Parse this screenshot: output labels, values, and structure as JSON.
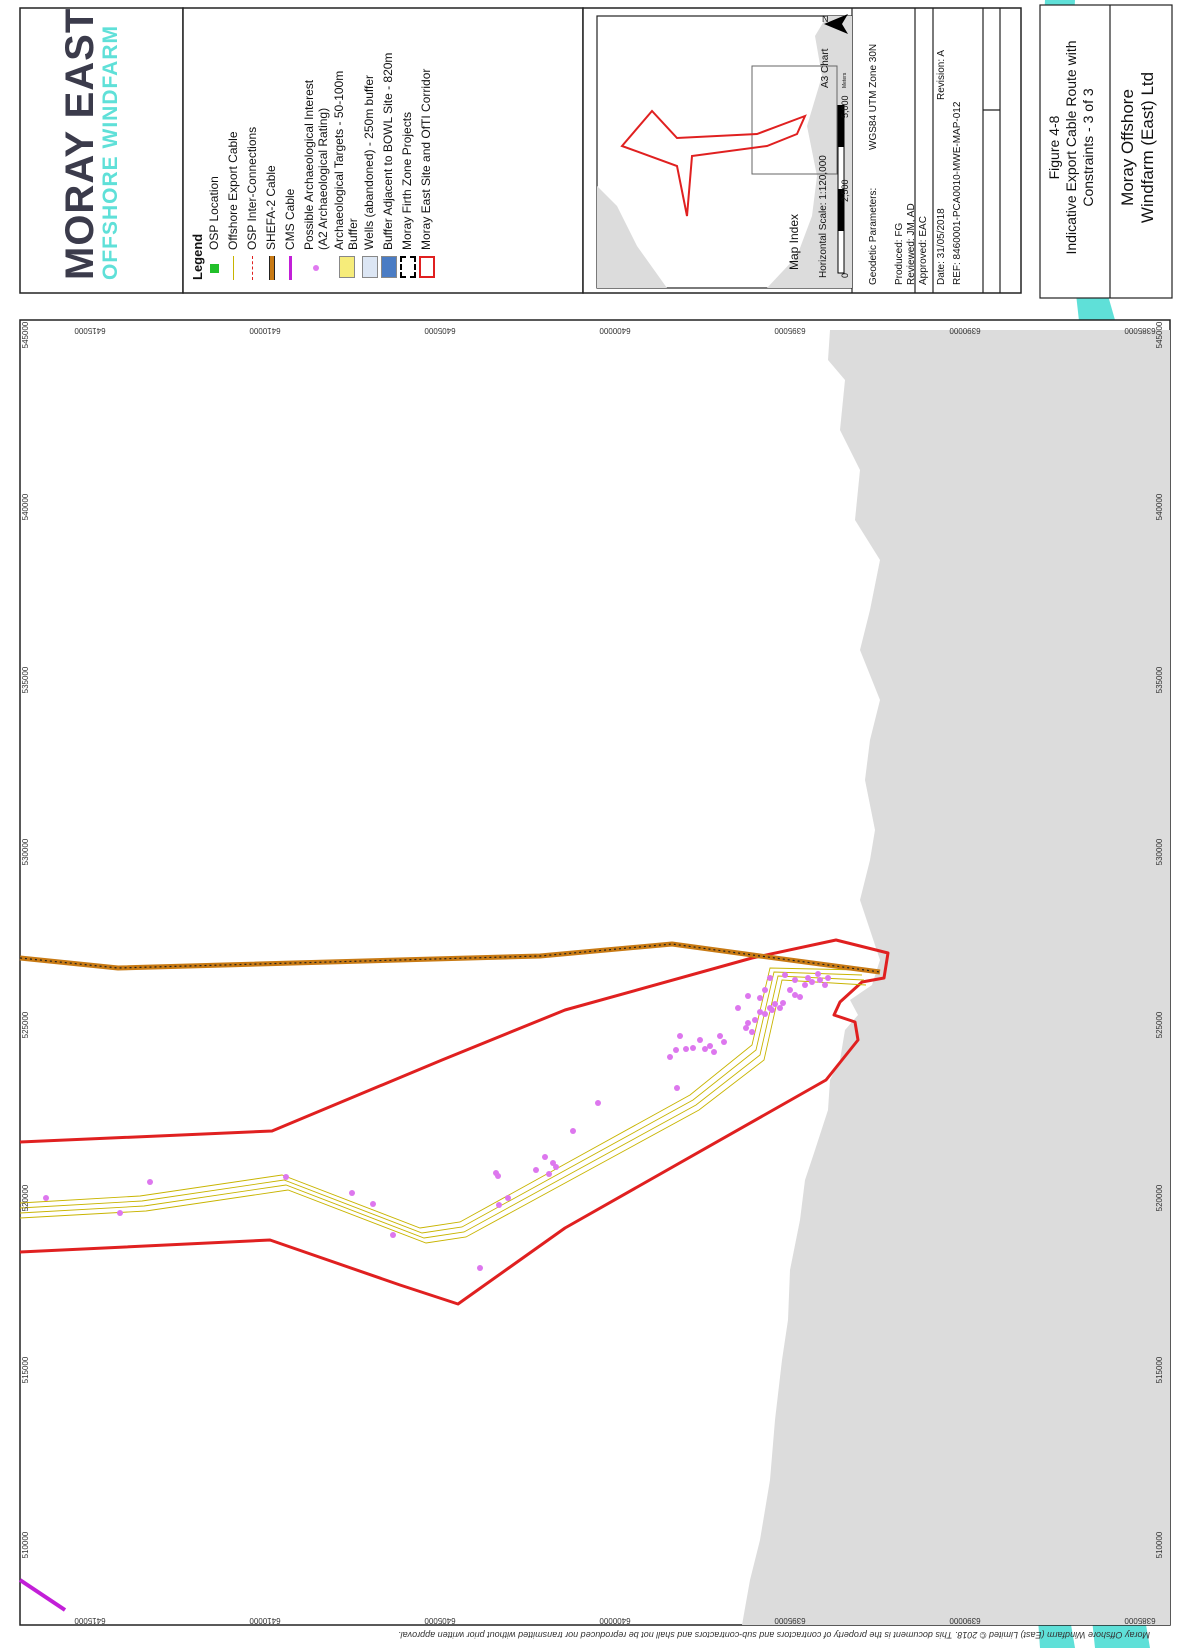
{
  "logo": {
    "line1": "MORAY EAST",
    "line2": "OFFSHORE WINDFARM"
  },
  "legend": {
    "title": "Legend",
    "items": [
      {
        "label": "OSP Location",
        "symbol": "green-square",
        "color": "#22c02a"
      },
      {
        "label": "Offshore Export Cable",
        "symbol": "line",
        "color": "#c8b400"
      },
      {
        "label": "OSP Inter-Connections",
        "symbol": "dashed-line",
        "color": "#e02020"
      },
      {
        "label": "SHEFA-2 Cable",
        "symbol": "cable",
        "color": "#c87a14"
      },
      {
        "label": "CMS Cable",
        "symbol": "line-thick",
        "color": "#c21fd8"
      },
      {
        "label": "Possible Archaeological Interest",
        "label2": "(A2 Archaeological Rating)",
        "symbol": "dot",
        "color": "#e07af0"
      },
      {
        "label": "Archaeological Targets - 50-100m",
        "label2": "Buffer",
        "symbol": "yellow-box",
        "color": "#f6ec7a"
      },
      {
        "label": "Wells (abandoned) - 250m buffer",
        "symbol": "lightblue-box",
        "color": "#dce6f4"
      },
      {
        "label": "Buffer Adjacent to BOWL Site - 820m",
        "symbol": "blue-box",
        "color": "#4a7cc4"
      },
      {
        "label": "Moray Firth Zone Projects",
        "symbol": "dashed-box",
        "color": "#000000"
      },
      {
        "label": "Moray East Site and OfTI Corridor",
        "symbol": "red-box",
        "color": "#e02020"
      }
    ]
  },
  "map_index": {
    "label": "Map Index"
  },
  "scale": {
    "label": "Horizontal Scale:  1:120,000",
    "chart": "A3 Chart",
    "ticks": [
      "0",
      "2,500",
      "5,000"
    ],
    "unit": "Meters",
    "north": "N"
  },
  "geodetic": {
    "label": "Geodetic Parameters:",
    "value": "WGS84 UTM Zone 30N"
  },
  "credits": {
    "produced": "Produced: FG",
    "reviewed": "Reviewed: JM, AD",
    "approved": "Approved: EAC"
  },
  "date": "Date: 31/05/2018",
  "revision": "Revision: A",
  "ref": "REF: 8460001-PCA0010-MWE-MAP-012",
  "figure": {
    "line1": "Figure 4-8",
    "line2": "Indicative Export Cable Route with",
    "line3": "Constraints - 3 of 3"
  },
  "company": {
    "line1": "Moray Offshore",
    "line2": "Windfarm (East) Ltd"
  },
  "footer": "Moray Offshore Windfarm (East) Limited © 2018.  This document is the property of contractors and sub-contractors and shall not be reproduced nor transmitted without prior written approval.",
  "axes": {
    "easting": [
      "510000",
      "515000",
      "520000",
      "525000",
      "530000",
      "535000",
      "540000",
      "545000"
    ],
    "northing": [
      "6385000",
      "6390000",
      "6395000",
      "6400000",
      "6405000",
      "6410000",
      "6415000"
    ]
  },
  "colors": {
    "land": "#dcdcdc",
    "corridor": "#e02020",
    "cable": "#c8b400",
    "shefa": "#c87a14",
    "points": "#dd77ee",
    "cms": "#c21fd8",
    "accent": "#5fe0d8"
  }
}
